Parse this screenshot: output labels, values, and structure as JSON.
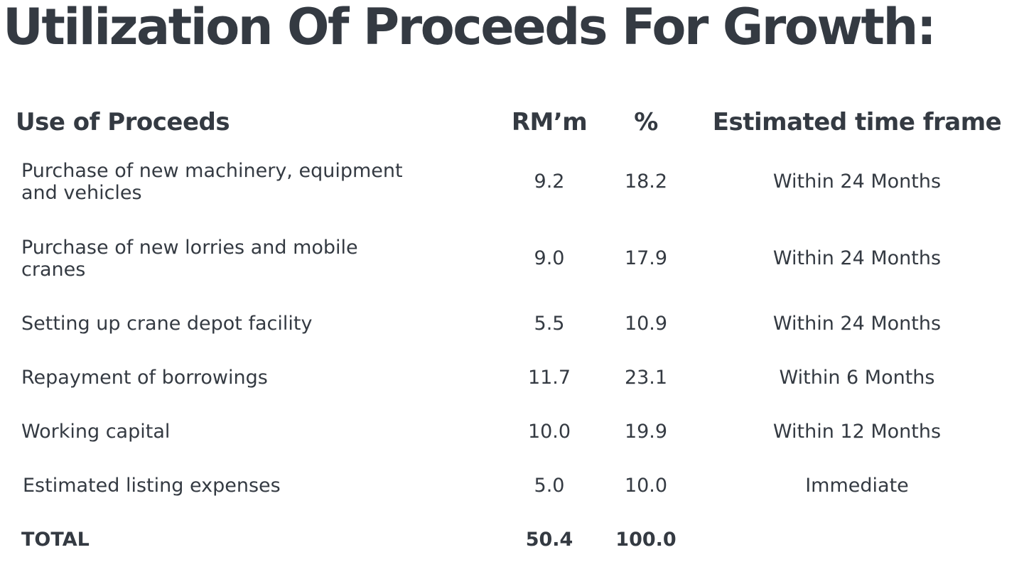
{
  "title": "Utilization Of Proceeds For Growth:",
  "table": {
    "headers": {
      "use": "Use of Proceeds",
      "rm": "RM’m",
      "pct": "%",
      "time": "Estimated time frame"
    },
    "rows": [
      {
        "use_line1": "Purchase of new machinery, equipment",
        "use_line2": "and vehicles",
        "rm": "9.2",
        "pct": "18.2",
        "time": "Within 24 Months"
      },
      {
        "use_line1": "Purchase of new lorries and mobile",
        "use_line2": "cranes",
        "rm": "9.0",
        "pct": "17.9",
        "time": "Within 24 Months"
      },
      {
        "use": "Setting up crane depot facility",
        "rm": "5.5",
        "pct": "10.9",
        "time": "Within 24 Months"
      },
      {
        "use": "Repayment of borrowings",
        "rm": "11.7",
        "pct": "23.1",
        "time": "Within 6 Months"
      },
      {
        "use": "Working capital",
        "rm": "10.0",
        "pct": "19.9",
        "time": "Within 12 Months"
      },
      {
        "use": "Estimated listing expenses",
        "rm": "5.0",
        "pct": "10.0",
        "time": "Immediate"
      }
    ],
    "total": {
      "label": "TOTAL",
      "rm": "50.4",
      "pct": "100.0"
    }
  }
}
